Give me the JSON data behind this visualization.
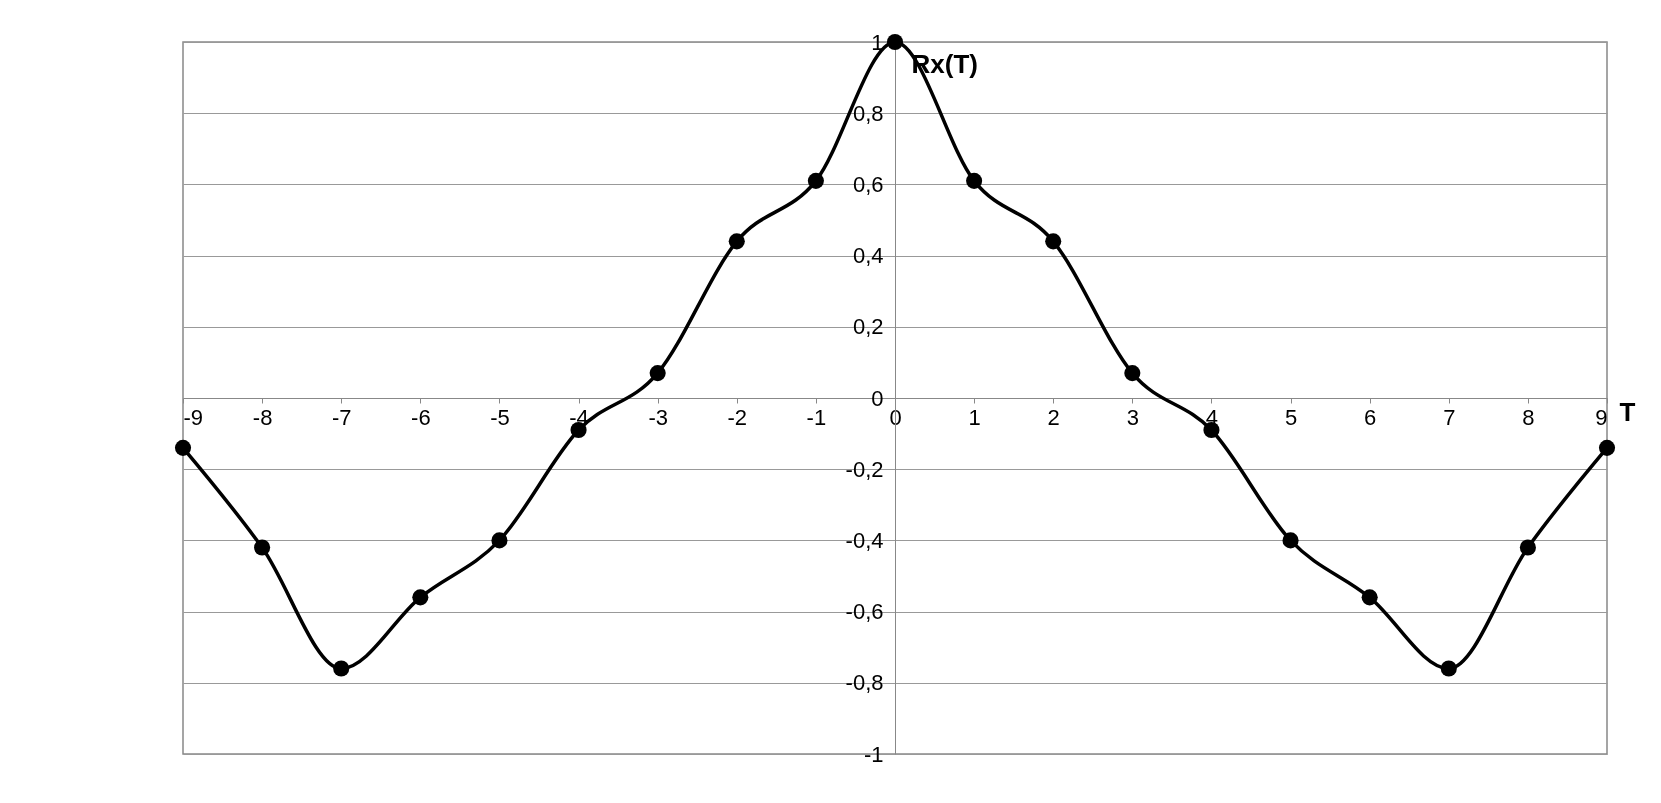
{
  "chart_data": {
    "type": "line",
    "xlabel": "T",
    "ylabel": "Rx(T)",
    "x": [
      -9,
      -8,
      -7,
      -6,
      -5,
      -4,
      -3,
      -2,
      -1,
      0,
      1,
      2,
      3,
      4,
      5,
      6,
      7,
      8,
      9
    ],
    "series": [
      {
        "color": "#000000",
        "values": [
          -0.14,
          -0.42,
          -0.76,
          -0.56,
          -0.4,
          -0.09,
          0.07,
          0.44,
          0.61,
          1,
          0.61,
          0.44,
          0.07,
          -0.09,
          -0.4,
          -0.56,
          -0.76,
          -0.42,
          -0.14
        ]
      }
    ],
    "xlim": [
      -9,
      9
    ],
    "xticks": [
      -9,
      -8,
      -7,
      -6,
      -5,
      -4,
      -3,
      -2,
      -1,
      0,
      1,
      2,
      3,
      4,
      5,
      6,
      7,
      8,
      9
    ],
    "ylim": [
      -1,
      1
    ],
    "yticks": [
      {
        "value": -1,
        "label": "-1"
      },
      {
        "value": -0.8,
        "label": "-0,8"
      },
      {
        "value": -0.6,
        "label": "-0,6"
      },
      {
        "value": -0.4,
        "label": "-0,4"
      },
      {
        "value": -0.2,
        "label": "-0,2"
      },
      {
        "value": 0,
        "label": "0"
      },
      {
        "value": 0.2,
        "label": "0,2"
      },
      {
        "value": 0.4,
        "label": "0,4"
      },
      {
        "value": 0.6,
        "label": "0,6"
      },
      {
        "value": 0.8,
        "label": "0,8"
      },
      {
        "value": 1,
        "label": "1"
      }
    ],
    "grid": "y",
    "marker": "circle",
    "line_style": "solid"
  }
}
